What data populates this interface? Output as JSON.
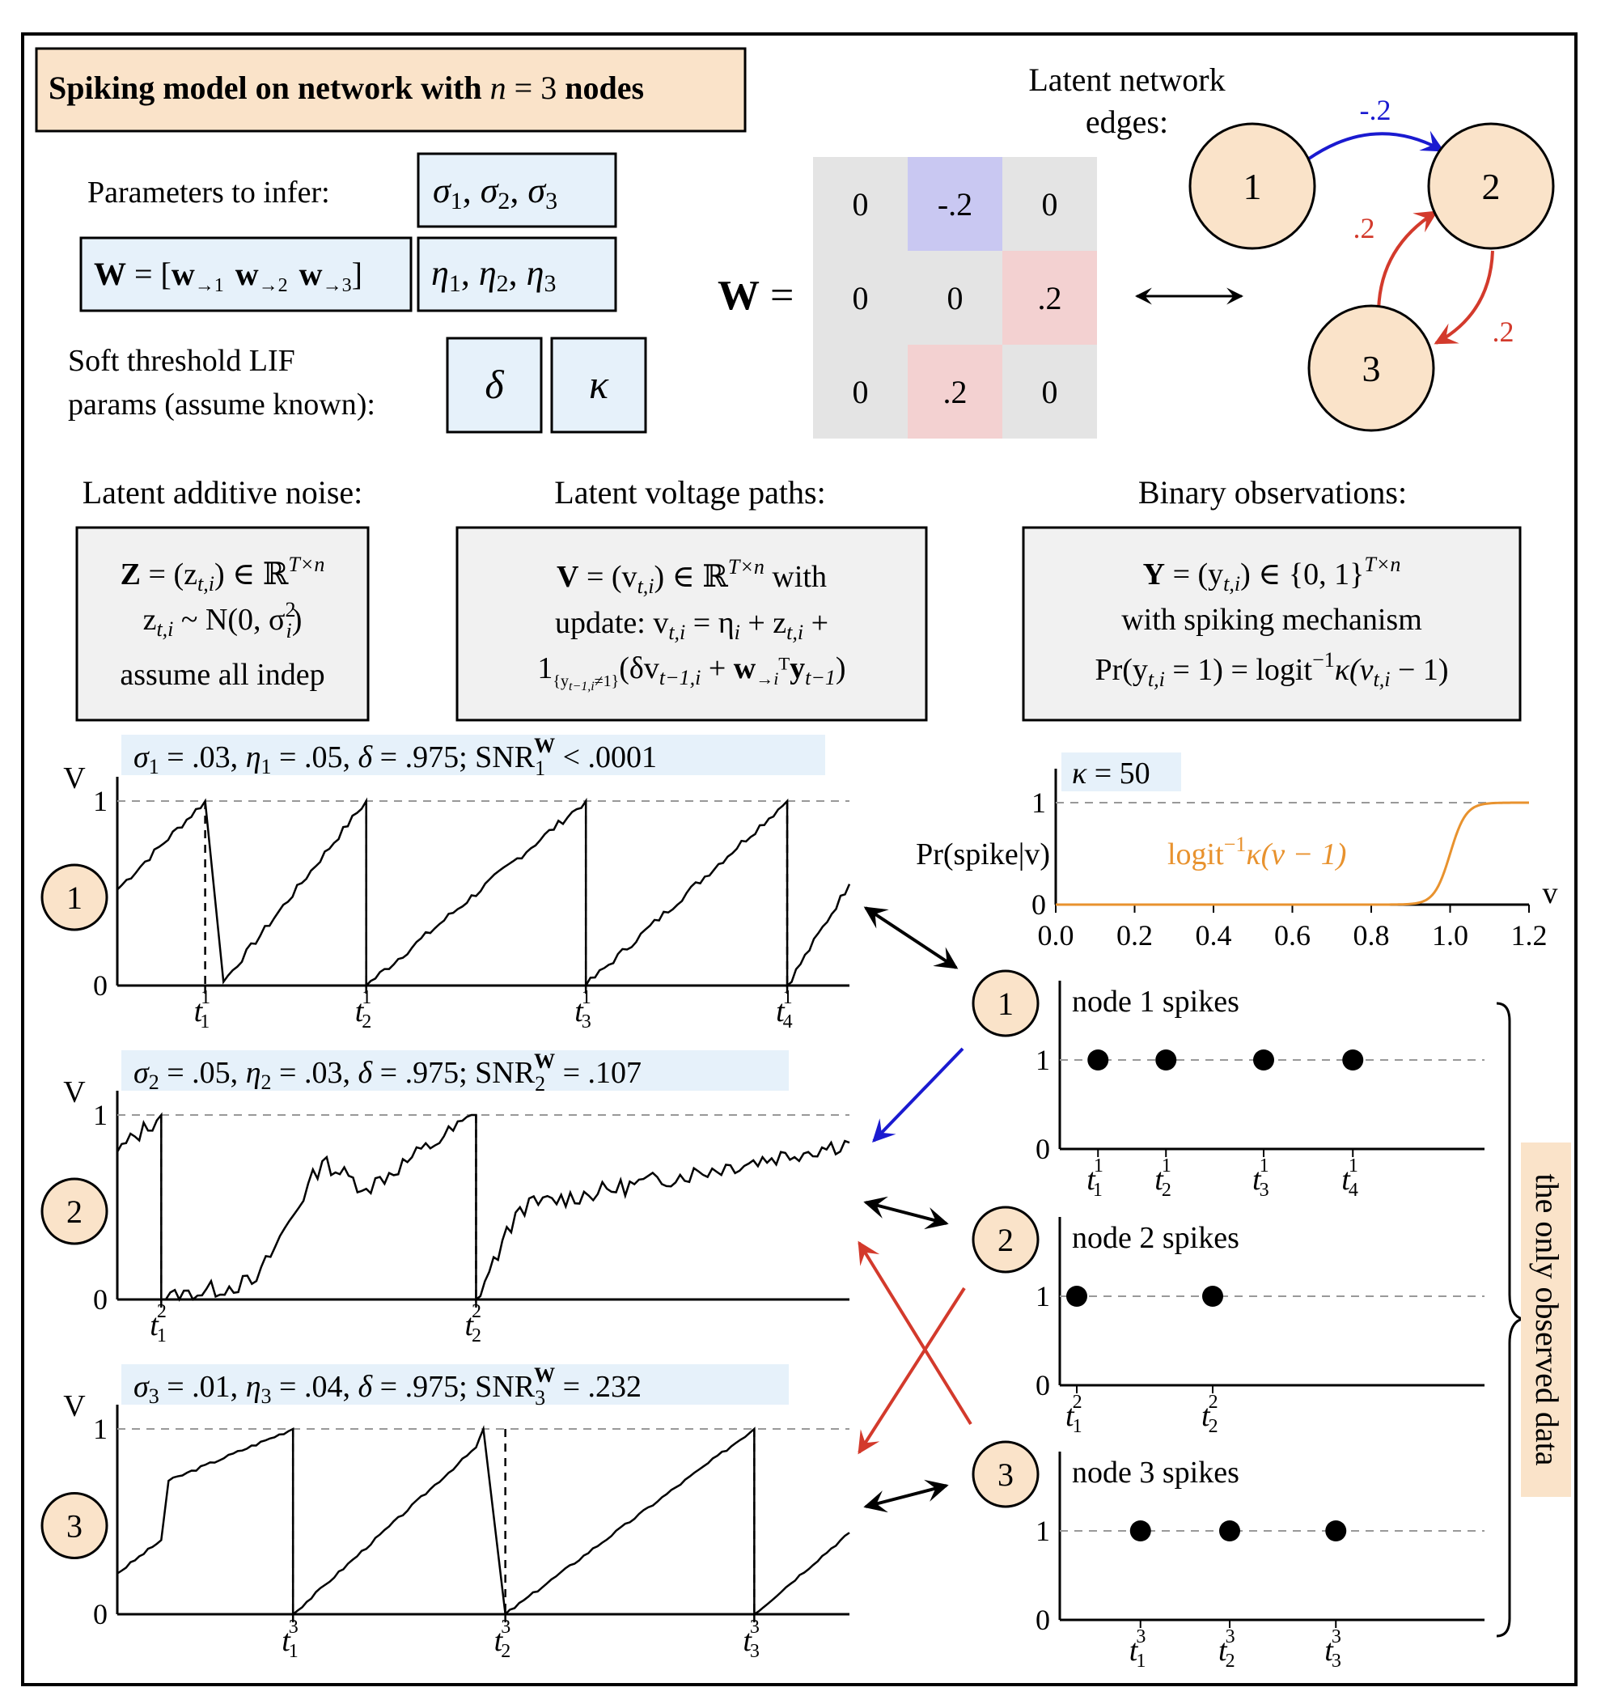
{
  "title": {
    "pre": "Spiking model on network with ",
    "n": "n",
    "eq": " = 3 ",
    "post": "nodes"
  },
  "params": {
    "infer_label": "Parameters to infer:",
    "sigma_box": [
      "σ",
      "1",
      ", ",
      "σ",
      "2",
      ", ",
      "σ",
      "3"
    ],
    "W_box": {
      "W": "W",
      "eq": " = [",
      "w1": "w",
      "s1": "→1",
      "w2": "w",
      "s2": "→2",
      "w3": "w",
      "s3": "→3",
      "close": "]"
    },
    "eta_box": [
      "η",
      "1",
      ",  ",
      "η",
      "2",
      ",  ",
      "η",
      "3"
    ],
    "lif_label_1": "Soft threshold LIF",
    "lif_label_2": "params (assume known):",
    "delta": "δ",
    "kappa": "κ"
  },
  "matrix": {
    "label": "W =",
    "cells": [
      [
        "0",
        "-.2",
        "0"
      ],
      [
        "0",
        "0",
        ".2"
      ],
      [
        "0",
        ".2",
        "0"
      ]
    ],
    "colors": [
      [
        "#e4e4e4",
        "#c9c8f2",
        "#e4e4e4"
      ],
      [
        "#e4e4e4",
        "#e4e4e4",
        "#f3d1d1"
      ],
      [
        "#e4e4e4",
        "#f3d1d1",
        "#e4e4e4"
      ]
    ]
  },
  "network": {
    "title_1": "Latent network",
    "title_2": "edges:",
    "nodes": [
      "1",
      "2",
      "3"
    ],
    "edges": [
      {
        "from": "1",
        "to": "2",
        "weight": "-.2",
        "color": "#1a1ad0"
      },
      {
        "from": "3",
        "to": "2",
        "weight": ".2",
        "color": "#d33a2c"
      },
      {
        "from": "2",
        "to": "3",
        "weight": ".2",
        "color": "#d33a2c"
      }
    ]
  },
  "latent": {
    "noise": {
      "header": "Latent additive noise:",
      "l1": {
        "Z": "Z",
        "a": " = (z",
        "sub": "t,i",
        "b": ") ∈ ℝ",
        "sup": "T×n"
      },
      "l2": {
        "a": "z",
        "sub": "t,i",
        "b": " ~ N(0, σ",
        "sup": "2",
        "sub2": "i",
        "c": ")"
      },
      "l3": "assume all indep"
    },
    "voltage": {
      "header": "Latent voltage paths:",
      "l1": {
        "V": "V",
        "a": " = (v",
        "sub": "t,i",
        "b": ") ∈ ℝ",
        "sup": "T×n",
        "c": " with"
      },
      "l2": {
        "a": "update:  v",
        "sub": "t,i",
        "b": " = η",
        "sub2": "i",
        "c": " + z",
        "sub3": "t,i",
        "d": " +"
      },
      "l3": {
        "a": "1",
        "sub": "{y",
        "sub_b": "t−1,i",
        "sub_c": "≠1}",
        "b": "(δv",
        "sub2": "t−1,i",
        "c": " + ",
        "w": "w",
        "sub3": "→i",
        "d": "ᵀ",
        "y": "y",
        "sub4": "t−1",
        "e": ")"
      }
    },
    "binary": {
      "header": "Binary observations:",
      "l1": {
        "Y": "Y",
        "a": " = (y",
        "sub": "t,i",
        "b": ") ∈ {0, 1}",
        "sup": "T×n"
      },
      "l2": "with spiking mechanism",
      "l3": {
        "a": "Pr(y",
        "sub": "t,i",
        "b": " = 1) = logit",
        "sup": "−1",
        "c": "κ(v",
        "sub2": "t,i",
        "d": " − 1)"
      }
    }
  },
  "voltage_plots": [
    {
      "node": "1",
      "ylabel": "V",
      "ticks": [
        "0",
        "1"
      ],
      "banner": {
        "p1": "σ",
        "s1": "1",
        "p2": " = .03, ",
        "p3": "η",
        "s3": "1",
        "p4": " = .05, ",
        "p5": "δ",
        "p6": " = .975; SNR",
        "sub": "1",
        "sup": "W",
        "p7": " < .0001"
      },
      "spike_labels": [
        [
          "t",
          "1",
          "1"
        ],
        [
          "t",
          "2",
          "1"
        ],
        [
          "t",
          "3",
          "1"
        ],
        [
          "t",
          "4",
          "1"
        ]
      ]
    },
    {
      "node": "2",
      "ylabel": "V",
      "ticks": [
        "0",
        "1"
      ],
      "banner": {
        "p1": "σ",
        "s1": "2",
        "p2": " = .05, ",
        "p3": "η",
        "s3": "2",
        "p4": " = .03, ",
        "p5": "δ",
        "p6": " = .975; SNR",
        "sub": "2",
        "sup": "W",
        "p7": " = .107"
      },
      "spike_labels": [
        [
          "t",
          "1",
          "2"
        ],
        [
          "t",
          "2",
          "2"
        ]
      ]
    },
    {
      "node": "3",
      "ylabel": "V",
      "ticks": [
        "0",
        "1"
      ],
      "banner": {
        "p1": "σ",
        "s1": "3",
        "p2": " = .01, ",
        "p3": "η",
        "s3": "3",
        "p4": " = .04, ",
        "p5": "δ",
        "p6": " = .975; SNR",
        "sub": "3",
        "sup": "W",
        "p7": " = .232"
      },
      "spike_labels": [
        [
          "t",
          "1",
          "3"
        ],
        [
          "t",
          "2",
          "3"
        ],
        [
          "t",
          "3",
          "3"
        ]
      ]
    }
  ],
  "logit_plot": {
    "banner": {
      "k": "κ",
      "rest": " = 50"
    },
    "ylabel": "Pr(spike|v)",
    "curve_label": {
      "a": "logit",
      "sup": "−1",
      "b": "κ(v − 1)"
    },
    "xlabel": "v",
    "yticks": [
      "0",
      "1"
    ],
    "xticks": [
      "0.0",
      "0.2",
      "0.4",
      "0.6",
      "0.8",
      "1.0",
      "1.2"
    ],
    "curve_color": "#e8922e"
  },
  "spike_plots": [
    {
      "node": "1",
      "title": "node 1 spikes",
      "ticks": [
        "0",
        "1"
      ],
      "labels": [
        [
          "t",
          "1",
          "1"
        ],
        [
          "t",
          "2",
          "1"
        ],
        [
          "t",
          "3",
          "1"
        ],
        [
          "t",
          "4",
          "1"
        ]
      ]
    },
    {
      "node": "2",
      "title": "node 2 spikes",
      "ticks": [
        "0",
        "1"
      ],
      "labels": [
        [
          "t",
          "1",
          "2"
        ],
        [
          "t",
          "2",
          "2"
        ]
      ]
    },
    {
      "node": "3",
      "title": "node 3 spikes",
      "ticks": [
        "0",
        "1"
      ],
      "labels": [
        [
          "t",
          "1",
          "3"
        ],
        [
          "t",
          "2",
          "3"
        ],
        [
          "t",
          "3",
          "3"
        ]
      ]
    }
  ],
  "observed_label": "the only observed data",
  "colors": {
    "peach": "#fae3c9",
    "lightblue": "#e6f1fa",
    "gray": "#f1f1f1",
    "blue": "#1a1ad0",
    "red": "#d33a2c",
    "orange": "#e8922e"
  }
}
